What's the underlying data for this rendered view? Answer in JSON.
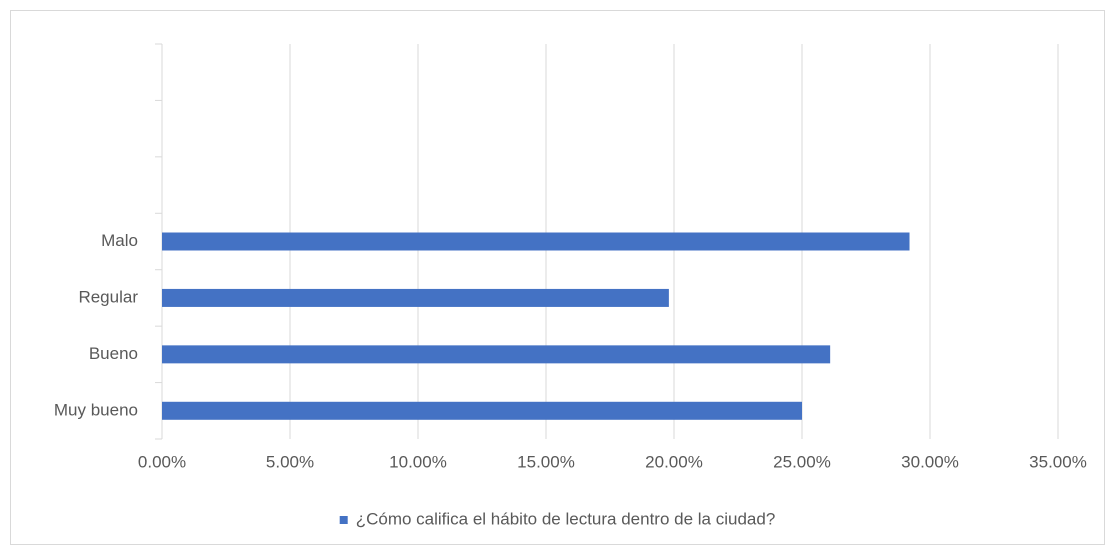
{
  "chart_data": {
    "type": "hbar",
    "categories": [
      "Muy bueno",
      "Bueno",
      "Regular",
      "Malo",
      null,
      null,
      null
    ],
    "series": [
      {
        "name": "¿Cómo califica el hábito de lectura dentro de la ciudad?",
        "color": "#4472c4",
        "values": [
          25.0,
          26.1,
          19.8,
          29.2,
          null,
          null,
          null
        ]
      }
    ],
    "xlim": [
      0,
      35
    ],
    "xticks": [
      {
        "value": 0,
        "label": "0.00%"
      },
      {
        "value": 5,
        "label": "5.00%"
      },
      {
        "value": 10,
        "label": "10.00%"
      },
      {
        "value": 15,
        "label": "15.00%"
      },
      {
        "value": 20,
        "label": "20.00%"
      },
      {
        "value": 25,
        "label": "25.00%"
      },
      {
        "value": 30,
        "label": "30.00%"
      },
      {
        "value": 35,
        "label": "35.00%"
      }
    ],
    "grid": true,
    "legend": "bottom"
  }
}
